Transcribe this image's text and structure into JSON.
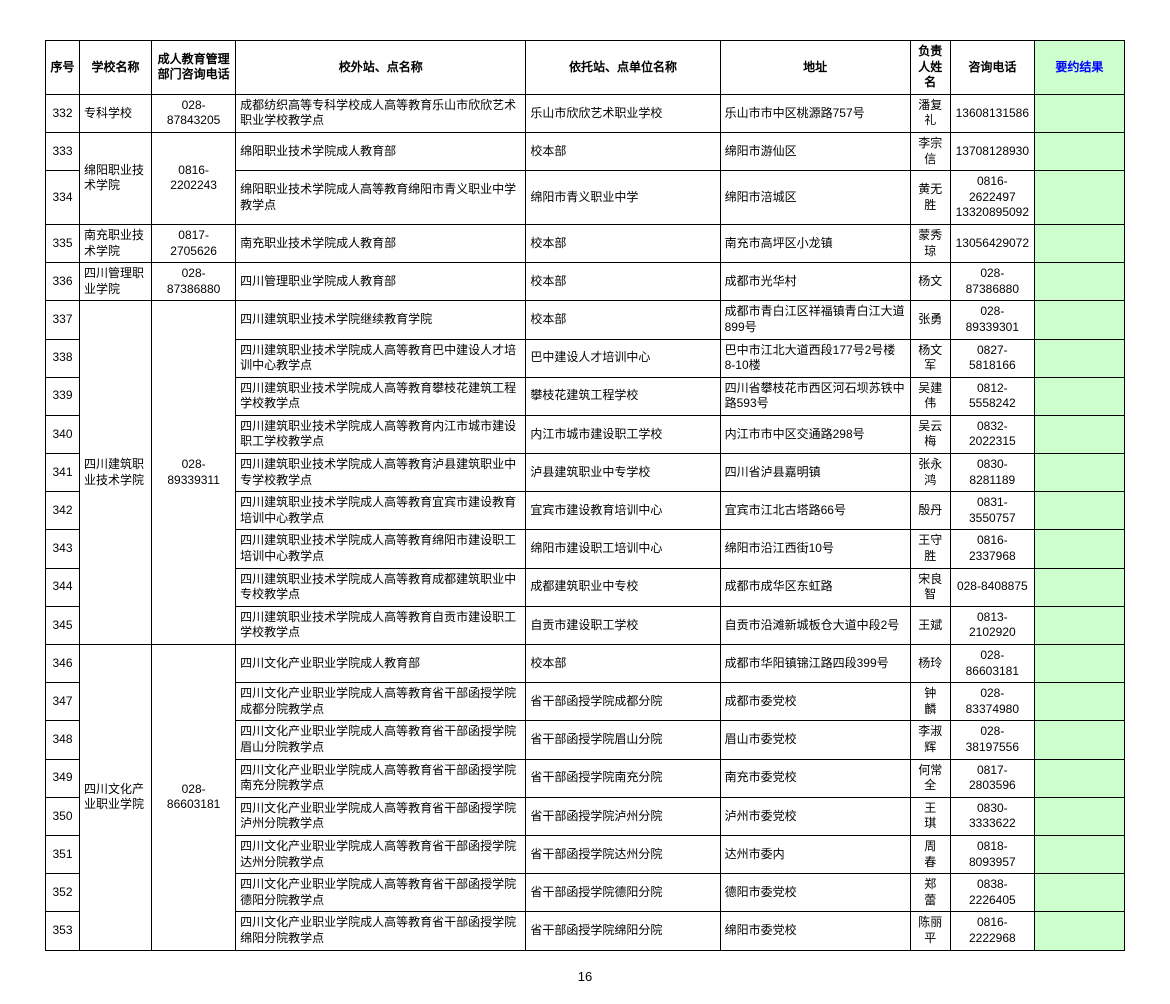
{
  "headers": {
    "seq": "序号",
    "school": "学校名称",
    "deptPhone": "成人教育管理部门咨询电话",
    "station": "校外站、点名称",
    "unit": "依托站、点单位名称",
    "addr": "地址",
    "person": "负责人姓名",
    "phone": "咨询电话",
    "result": "要约结果"
  },
  "colors": {
    "resultBg": "#ccffcc",
    "border": "#000000",
    "resultHeader": "#0000ff"
  },
  "pageNumber": "16",
  "rows": [
    {
      "seq": "332",
      "school": "专科学校",
      "deptPhone": "028-87843205",
      "station": "成都纺织高等专科学校成人高等教育乐山市欣欣艺术职业学校教学点",
      "unit": "乐山市欣欣艺术职业学校",
      "addr": "乐山市市中区桃源路757号",
      "person": "潘复礼",
      "phone": "13608131586"
    },
    {
      "seq": "333",
      "school": "绵阳职业技术学院",
      "schoolRowspan": 2,
      "deptPhone": "0816-2202243",
      "deptRowspan": 2,
      "station": "绵阳职业技术学院成人教育部",
      "unit": "校本部",
      "addr": "绵阳市游仙区",
      "person": "李宗信",
      "phone": "13708128930"
    },
    {
      "seq": "334",
      "station": "绵阳职业技术学院成人高等教育绵阳市青义职业中学教学点",
      "unit": "绵阳市青义职业中学",
      "addr": "绵阳市涪城区",
      "person": "黄无胜",
      "phone": "0816-2622497 13320895092"
    },
    {
      "seq": "335",
      "school": "南充职业技术学院",
      "deptPhone": "0817-2705626",
      "station": "南充职业技术学院成人教育部",
      "unit": "校本部",
      "addr": "南充市高坪区小龙镇",
      "person": "蒙秀琼",
      "phone": "13056429072"
    },
    {
      "seq": "336",
      "school": "四川管理职业学院",
      "deptPhone": "028-87386880",
      "station": "四川管理职业学院成人教育部",
      "unit": "校本部",
      "addr": "成都市光华村",
      "person": "杨文",
      "phone": "028-87386880"
    },
    {
      "seq": "337",
      "school": "四川建筑职业技术学院",
      "schoolRowspan": 9,
      "deptPhone": "028-89339311",
      "deptRowspan": 9,
      "station": "四川建筑职业技术学院继续教育学院",
      "unit": "校本部",
      "addr": "成都市青白江区祥福镇青白江大道899号",
      "person": "张勇",
      "phone": "028-89339301"
    },
    {
      "seq": "338",
      "station": "四川建筑职业技术学院成人高等教育巴中建设人才培训中心教学点",
      "unit": "巴中建设人才培训中心",
      "addr": "巴中市江北大道西段177号2号楼8-10楼",
      "person": "杨文军",
      "phone": "0827-5818166"
    },
    {
      "seq": "339",
      "station": "四川建筑职业技术学院成人高等教育攀枝花建筑工程学校教学点",
      "unit": "攀枝花建筑工程学校",
      "addr": "四川省攀枝花市西区河石坝苏铁中路593号",
      "person": "吴建伟",
      "phone": "0812-5558242"
    },
    {
      "seq": "340",
      "station": "四川建筑职业技术学院成人高等教育内江市城市建设职工学校教学点",
      "unit": "内江市城市建设职工学校",
      "addr": "内江市市中区交通路298号",
      "person": "吴云梅",
      "phone": "0832-2022315"
    },
    {
      "seq": "341",
      "station": "四川建筑职业技术学院成人高等教育泸县建筑职业中专学校教学点",
      "unit": "泸县建筑职业中专学校",
      "addr": "四川省泸县嘉明镇",
      "person": "张永鸿",
      "phone": "0830-8281189"
    },
    {
      "seq": "342",
      "station": "四川建筑职业技术学院成人高等教育宜宾市建设教育培训中心教学点",
      "unit": "宜宾市建设教育培训中心",
      "addr": "宜宾市江北古塔路66号",
      "person": "殷丹",
      "phone": "0831-3550757"
    },
    {
      "seq": "343",
      "station": "四川建筑职业技术学院成人高等教育绵阳市建设职工培训中心教学点",
      "unit": "绵阳市建设职工培训中心",
      "addr": "绵阳市沿江西街10号",
      "person": "王守胜",
      "phone": "0816-2337968"
    },
    {
      "seq": "344",
      "station": "四川建筑职业技术学院成人高等教育成都建筑职业中专校教学点",
      "unit": "成都建筑职业中专校",
      "addr": "成都市成华区东虹路",
      "person": "宋良智",
      "phone": "028-8408875"
    },
    {
      "seq": "345",
      "station": "四川建筑职业技术学院成人高等教育自贡市建设职工学校教学点",
      "unit": "自贡市建设职工学校",
      "addr": "自贡市沿滩新城板仓大道中段2号",
      "person": "王斌",
      "phone": "0813-2102920"
    },
    {
      "seq": "346",
      "school": "四川文化产业职业学院",
      "schoolRowspan": 8,
      "deptPhone": "028-86603181",
      "deptRowspan": 8,
      "station": "四川文化产业职业学院成人教育部",
      "unit": "校本部",
      "addr": "成都市华阳镇锦江路四段399号",
      "person": "杨玲",
      "phone": "028-86603181"
    },
    {
      "seq": "347",
      "station": "四川文化产业职业学院成人高等教育省干部函授学院成都分院教学点",
      "unit": "省干部函授学院成都分院",
      "addr": "成都市委党校",
      "person": "钟　麟",
      "phone": "028-83374980"
    },
    {
      "seq": "348",
      "station": "四川文化产业职业学院成人高等教育省干部函授学院眉山分院教学点",
      "unit": "省干部函授学院眉山分院",
      "addr": "眉山市委党校",
      "person": "李淑辉",
      "phone": "028-38197556"
    },
    {
      "seq": "349",
      "station": "四川文化产业职业学院成人高等教育省干部函授学院南充分院教学点",
      "unit": "省干部函授学院南充分院",
      "addr": "南充市委党校",
      "person": "何常全",
      "phone": "0817-2803596"
    },
    {
      "seq": "350",
      "station": "四川文化产业职业学院成人高等教育省干部函授学院泸州分院教学点",
      "unit": "省干部函授学院泸州分院",
      "addr": "泸州市委党校",
      "person": "王　琪",
      "phone": "0830-3333622"
    },
    {
      "seq": "351",
      "station": "四川文化产业职业学院成人高等教育省干部函授学院达州分院教学点",
      "unit": "省干部函授学院达州分院",
      "addr": "达州市委内",
      "person": "周　春",
      "phone": "0818-8093957"
    },
    {
      "seq": "352",
      "station": "四川文化产业职业学院成人高等教育省干部函授学院德阳分院教学点",
      "unit": "省干部函授学院德阳分院",
      "addr": "德阳市委党校",
      "person": "郑　蕾",
      "phone": "0838-2226405"
    },
    {
      "seq": "353",
      "station": "四川文化产业职业学院成人高等教育省干部函授学院绵阳分院教学点",
      "unit": "省干部函授学院绵阳分院",
      "addr": "绵阳市委党校",
      "person": "陈丽平",
      "phone": "0816-2222968"
    }
  ]
}
